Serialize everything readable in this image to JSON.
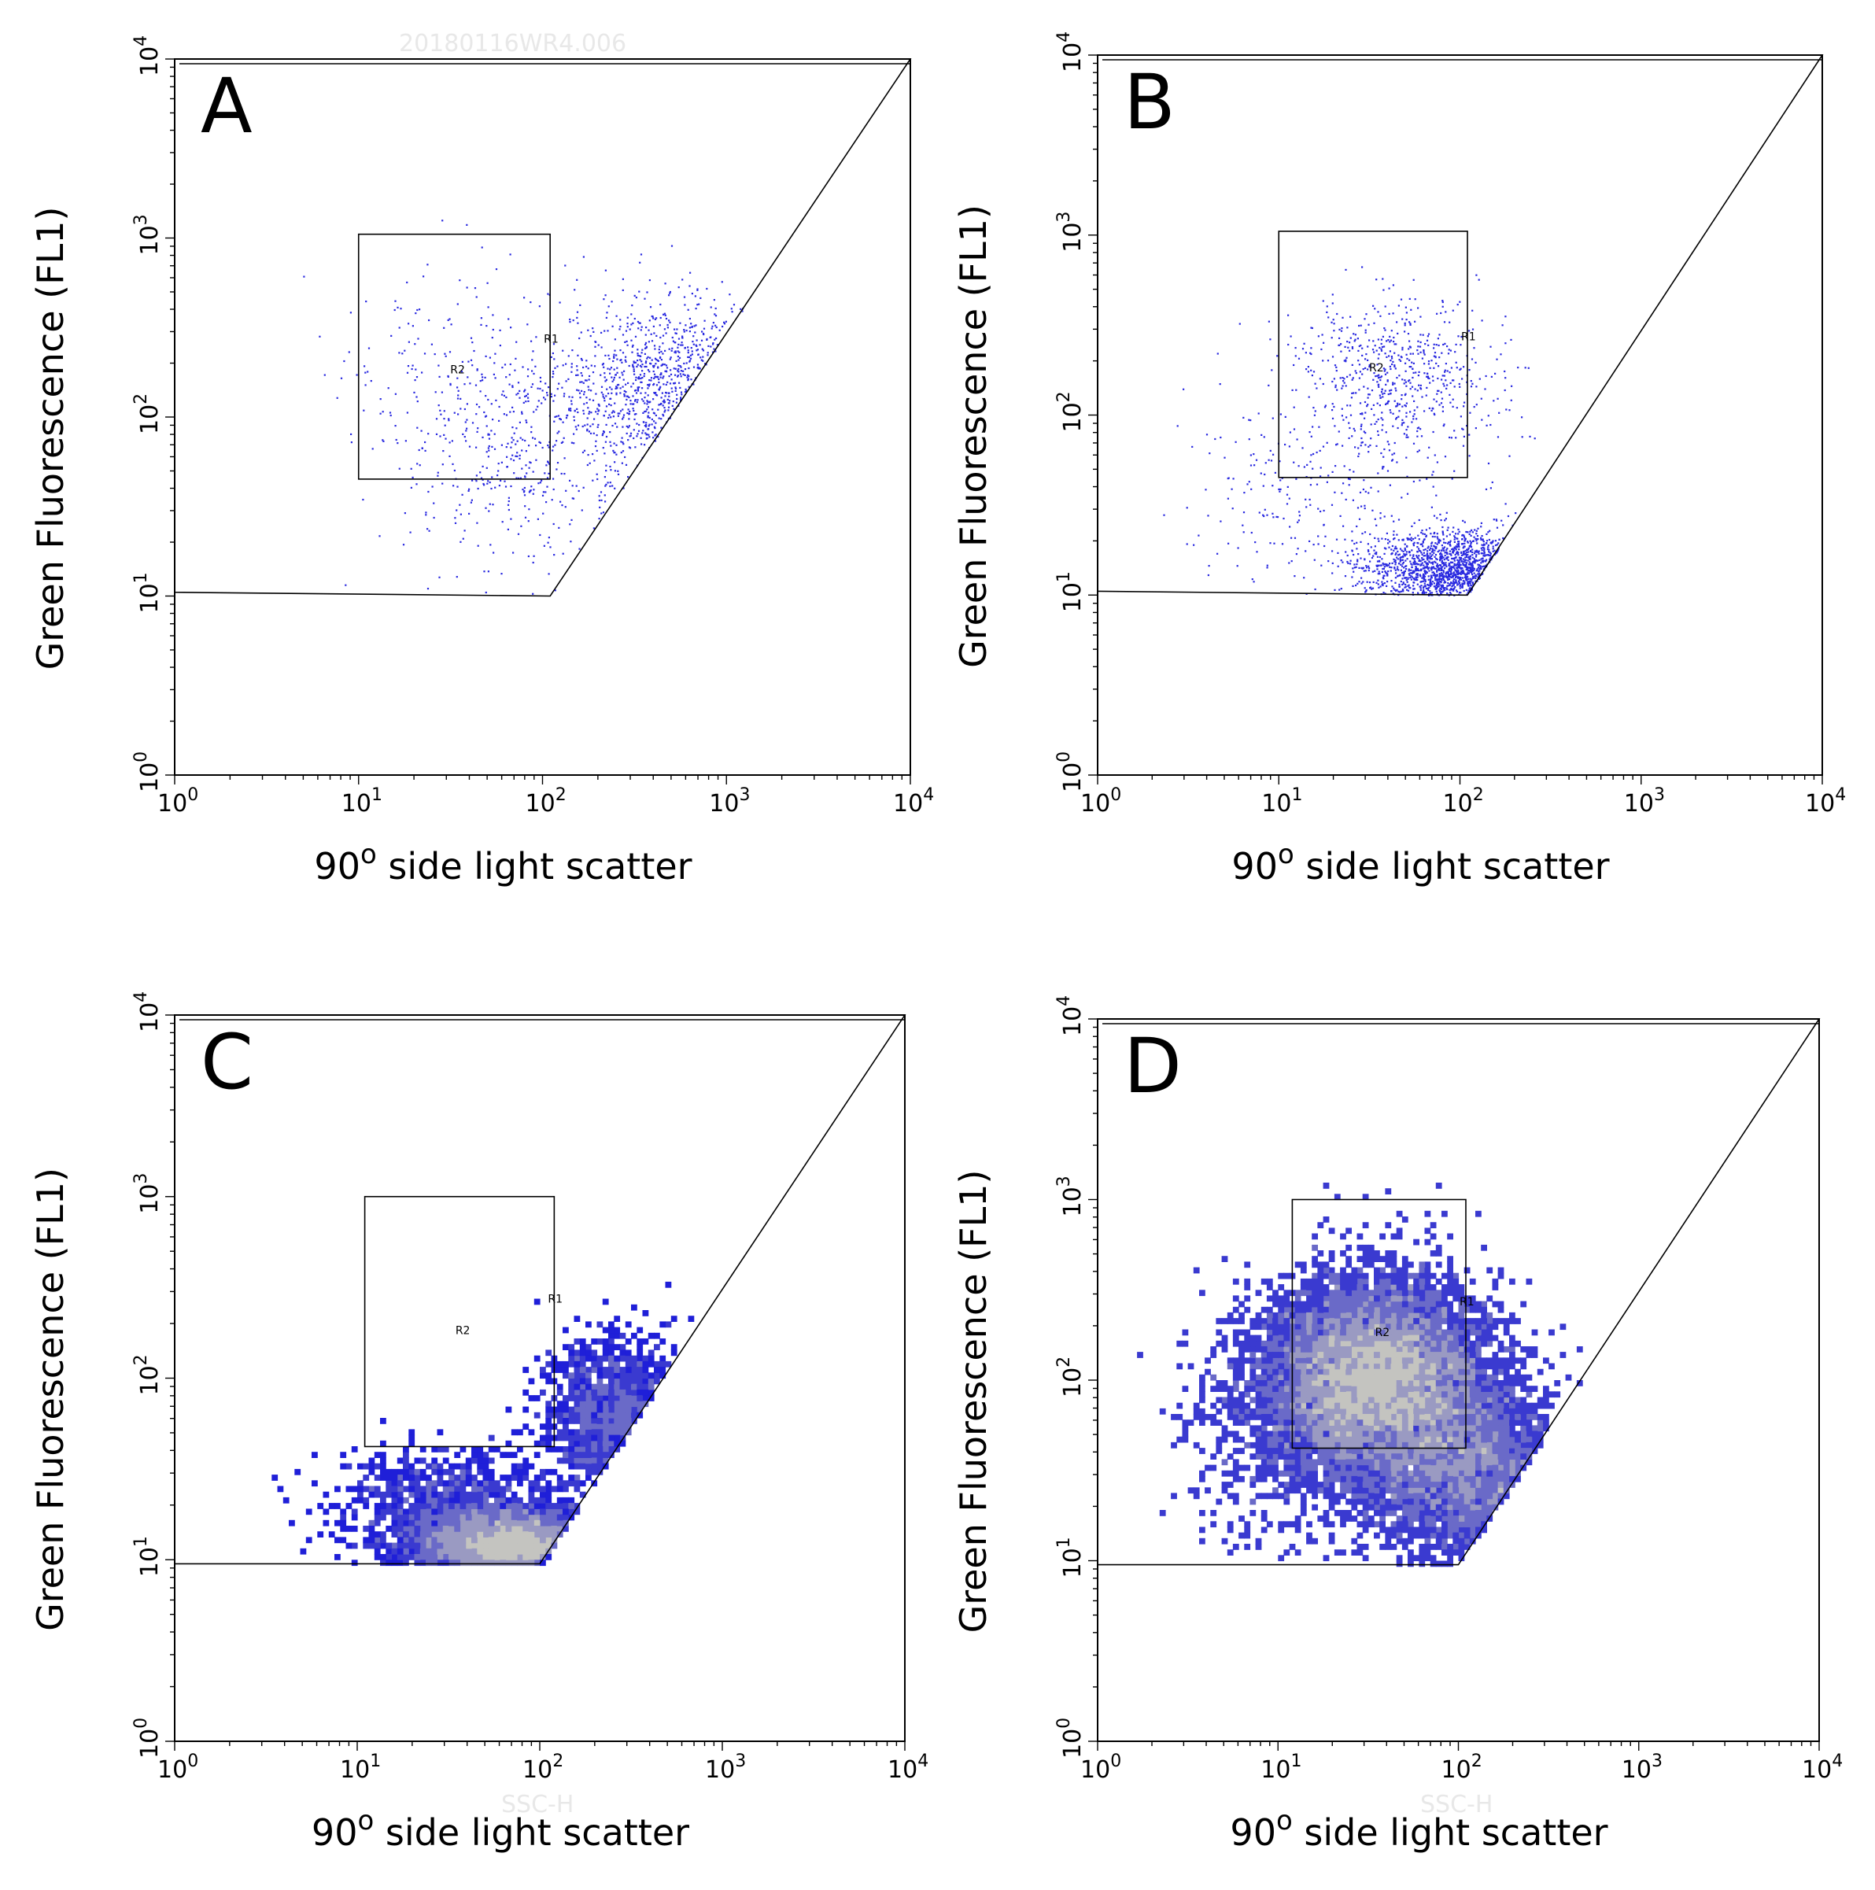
{
  "figure": {
    "x_axis_title": "90",
    "x_axis_title_sup": "o",
    "x_axis_title_rest": " side light scatter",
    "y_axis_title": "Green Fluorescence (FL1)"
  },
  "chart_data": [
    {
      "type": "scatter",
      "panel_label": "A",
      "xlabel": "90o side light scatter",
      "ylabel": "Green Fluorescence (FL1)",
      "xscale": "log",
      "yscale": "log",
      "xlim": [
        1,
        10000
      ],
      "ylim": [
        1,
        10000
      ],
      "xticks": [
        "10",
        "10",
        "10",
        "10",
        "10"
      ],
      "xtick_exponents": [
        "0",
        "1",
        "2",
        "3",
        "4"
      ],
      "yticks": [
        "10",
        "10",
        "10",
        "10",
        "10"
      ],
      "ytick_exponents": [
        "0",
        "1",
        "2",
        "3",
        "4"
      ],
      "watermark": "20180116WR4.006",
      "style": "dot",
      "color": "#2a2ae0",
      "gates": {
        "R1": {
          "label": "R1",
          "polygon": [
            [
              1,
              10000
            ],
            [
              10000,
              10000
            ],
            [
              110,
              10
            ],
            [
              1,
              10.5
            ]
          ]
        },
        "R2": {
          "label": "R2",
          "rect": {
            "x": [
              10,
              110
            ],
            "y": [
              45,
              1050
            ]
          }
        }
      },
      "clusters": [
        {
          "center": [
            500,
            150
          ],
          "spread": [
            0.55,
            0.45
          ],
          "count": 1300
        },
        {
          "center": [
            80,
            60
          ],
          "spread": [
            0.6,
            0.55
          ],
          "count": 450
        },
        {
          "center": [
            30,
            200
          ],
          "spread": [
            0.6,
            0.5
          ],
          "count": 160
        }
      ]
    },
    {
      "type": "scatter",
      "panel_label": "B",
      "xlabel": "90o side light scatter",
      "ylabel": "Green Fluorescence (FL1)",
      "xscale": "log",
      "yscale": "log",
      "xlim": [
        1,
        10000
      ],
      "ylim": [
        1,
        10000
      ],
      "xticks": [
        "10",
        "10",
        "10",
        "10",
        "10"
      ],
      "xtick_exponents": [
        "0",
        "1",
        "2",
        "3",
        "4"
      ],
      "yticks": [
        "10",
        "10",
        "10",
        "10",
        "10"
      ],
      "ytick_exponents": [
        "0",
        "1",
        "2",
        "3",
        "4"
      ],
      "watermark": "",
      "style": "dot",
      "color": "#2a2ae0",
      "gates": {
        "R1": {
          "label": "R1",
          "polygon": [
            [
              1,
              10000
            ],
            [
              10000,
              10000
            ],
            [
              110,
              10
            ],
            [
              1,
              10.5
            ]
          ]
        },
        "R2": {
          "label": "R2",
          "rect": {
            "x": [
              10,
              110
            ],
            "y": [
              45,
              1050
            ]
          }
        }
      },
      "clusters": [
        {
          "center": [
            90,
            14
          ],
          "spread": [
            0.45,
            0.2
          ],
          "count": 2000
        },
        {
          "center": [
            45,
            170
          ],
          "spread": [
            0.5,
            0.38
          ],
          "count": 600
        },
        {
          "center": [
            20,
            40
          ],
          "spread": [
            0.7,
            0.55
          ],
          "count": 320
        }
      ]
    },
    {
      "type": "heatmap",
      "panel_label": "C",
      "xlabel": "90o side light scatter",
      "ylabel": "Green Fluorescence (FL1)",
      "xscale": "log",
      "yscale": "log",
      "xlim": [
        1,
        10000
      ],
      "ylim": [
        1,
        10000
      ],
      "xticks": [
        "10",
        "10",
        "10",
        "10",
        "10"
      ],
      "xtick_exponents": [
        "0",
        "1",
        "2",
        "3",
        "4"
      ],
      "yticks": [
        "10",
        "10",
        "10",
        "10",
        "10"
      ],
      "ytick_exponents": [
        "0",
        "1",
        "2",
        "3",
        "4"
      ],
      "watermark": "SSC-H",
      "style": "density",
      "palette": [
        "#1f1fd8",
        "#3a3ad0",
        "#6a6ac8",
        "#9a9ac2",
        "#c4c4c0"
      ],
      "gates": {
        "R1": {
          "label": "R1",
          "polygon": [
            [
              1,
              10000
            ],
            [
              10000,
              10000
            ],
            [
              100,
              9.5
            ],
            [
              1,
              9.5
            ]
          ]
        },
        "R2": {
          "label": "R2",
          "rect": {
            "x": [
              11,
              120
            ],
            "y": [
              42,
              1000
            ]
          }
        }
      },
      "clusters": [
        {
          "center": [
            70,
            12
          ],
          "spread": [
            0.45,
            0.18
          ],
          "count": 5200
        },
        {
          "center": [
            250,
            60
          ],
          "spread": [
            0.35,
            0.4
          ],
          "count": 1400
        },
        {
          "center": [
            30,
            20
          ],
          "spread": [
            0.55,
            0.3
          ],
          "count": 900
        }
      ]
    },
    {
      "type": "heatmap",
      "panel_label": "D",
      "xlabel": "90o side light scatter",
      "ylabel": "Green Fluorescence (FL1)",
      "xscale": "log",
      "yscale": "log",
      "xlim": [
        1,
        10000
      ],
      "ylim": [
        1,
        10000
      ],
      "xticks": [
        "10",
        "10",
        "10",
        "10",
        "10"
      ],
      "xtick_exponents": [
        "0",
        "1",
        "2",
        "3",
        "4"
      ],
      "yticks": [
        "10",
        "10",
        "10",
        "10",
        "10"
      ],
      "ytick_exponents": [
        "0",
        "1",
        "2",
        "3",
        "4"
      ],
      "watermark": "SSC-H",
      "style": "density",
      "palette": [
        "#1f1fd8",
        "#3a3ad0",
        "#6a6ac8",
        "#9a9ac2",
        "#c4c4c0"
      ],
      "gates": {
        "R1": {
          "label": "R1",
          "polygon": [
            [
              1,
              10000
            ],
            [
              10000,
              10000
            ],
            [
              100,
              9.5
            ],
            [
              1,
              9.5
            ]
          ]
        },
        "R2": {
          "label": "R2",
          "rect": {
            "x": [
              12,
              110
            ],
            "y": [
              42,
              1000
            ]
          }
        }
      },
      "clusters": [
        {
          "center": [
            35,
            100
          ],
          "spread": [
            0.55,
            0.5
          ],
          "count": 9000
        },
        {
          "center": [
            120,
            30
          ],
          "spread": [
            0.5,
            0.45
          ],
          "count": 3000
        },
        {
          "center": [
            15,
            60
          ],
          "spread": [
            0.6,
            0.55
          ],
          "count": 900
        }
      ]
    }
  ]
}
